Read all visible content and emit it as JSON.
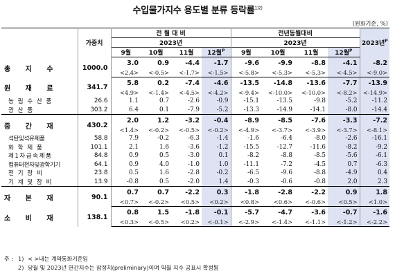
{
  "title": {
    "text": "수입물가지수 용도별 분류 등락률",
    "sup": "1)2)"
  },
  "unit": "(원화기준, %)",
  "header": {
    "weight": "가중치",
    "mom": "전 월 대 비",
    "yoy": "전년동월대비",
    "year": "2023년",
    "months": [
      "9월",
      "10월",
      "11월",
      "12월"
    ],
    "p_mark": "P",
    "annual": "2023년",
    "annual_p": "P"
  },
  "rows": [
    {
      "label": "총 지 수",
      "type": "major",
      "weight": "1000.0",
      "mom": [
        "3.0",
        "0.9",
        "-4.4",
        "-1.7"
      ],
      "yoy": [
        "-9.6",
        "-9.9",
        "-8.8",
        "-4.1"
      ],
      "annual": "-8.2",
      "mom_y": [
        "<2.4>",
        "<-0.5>",
        "<-1.7>",
        "<-1.5>"
      ],
      "yoy_y": [
        "<-5.8>",
        "<-5.3>",
        "<-5.3>",
        "<-4.5>"
      ],
      "annual_y": "<-9.0>"
    },
    {
      "label": "원 재 료",
      "type": "major",
      "weight": "341.7",
      "mom": [
        "5.8",
        "0.2",
        "-7.4",
        "-4.6"
      ],
      "yoy": [
        "-13.5",
        "-14.8",
        "-13.6",
        "-7.7"
      ],
      "annual": "-13.9",
      "mom_y": [
        "<4.9>",
        "<-1.4>",
        "<-4.5>",
        "<-4.2>"
      ],
      "yoy_y": [
        "<-9.4>",
        "<-10.0>",
        "<-10.0>",
        "<-8.2>"
      ],
      "annual_y": "<-14.9>"
    },
    {
      "label": "농 림 수 산 품",
      "type": "sub",
      "weight": "26.6",
      "mom": [
        "1.1",
        "0.7",
        "-2.6",
        "-0.9"
      ],
      "yoy": [
        "-15.1",
        "-13.5",
        "-9.8",
        "-5.2"
      ],
      "annual": "-11.2"
    },
    {
      "label": "광 산 품",
      "type": "sub",
      "weight": "303.2",
      "mom": [
        "6.4",
        "0.1",
        "-7.9",
        "-5.2"
      ],
      "yoy": [
        "-13.3",
        "-14.9",
        "-14.1",
        "-8.0"
      ],
      "annual": "-14.4"
    },
    {
      "label": "중 간 재",
      "type": "major",
      "weight": "430.2",
      "mom": [
        "2.0",
        "1.2",
        "-3.2",
        "-0.4"
      ],
      "yoy": [
        "-8.9",
        "-8.5",
        "-7.6",
        "-3.3"
      ],
      "annual": "-7.2",
      "mom_y": [
        "<1.4>",
        "<-0.2>",
        "<-0.5>",
        "<-0.2>"
      ],
      "yoy_y": [
        "<-4.9>",
        "<-3.7>",
        "<-3.9>",
        "<-3.7>"
      ],
      "annual_y": "<-8.1>"
    },
    {
      "label": "석탄및석유제품",
      "type": "sub",
      "tight": true,
      "weight": "58.8",
      "mom": [
        "7.9",
        "-0.2",
        "-6.3",
        "-1.4"
      ],
      "yoy": [
        "-1.6",
        "-6.4",
        "-8.0",
        "-2.6"
      ],
      "annual": "-16.1"
    },
    {
      "label": "화 학 제 품",
      "type": "sub",
      "weight": "101.1",
      "mom": [
        "2.1",
        "1.6",
        "-3.6",
        "-1.2"
      ],
      "yoy": [
        "-15.5",
        "-12.7",
        "-11.6",
        "-8.2"
      ],
      "annual": "-9.2"
    },
    {
      "label": "제1차금속제품",
      "type": "sub",
      "weight": "84.8",
      "mom": [
        "0.9",
        "0.5",
        "-3.0",
        "0.1"
      ],
      "yoy": [
        "-8.2",
        "-8.8",
        "-8.5",
        "-5.6"
      ],
      "annual": "-6.1"
    },
    {
      "label": "컴퓨터전자및광학기기",
      "type": "sub",
      "tight": true,
      "weight": "64.1",
      "mom": [
        "0.9",
        "4.0",
        "-1.0",
        "1.0"
      ],
      "yoy": [
        "-11.1",
        "-7.2",
        "-4.5",
        "0.7"
      ],
      "annual": "-6.3"
    },
    {
      "label": "전 기 장 비",
      "type": "sub",
      "weight": "23.8",
      "mom": [
        "0.5",
        "1.6",
        "-2.8",
        "-0.2"
      ],
      "yoy": [
        "-6.5",
        "-9.6",
        "-8.8",
        "-4.9"
      ],
      "annual": "0.4"
    },
    {
      "label": "기 계 및 장 비",
      "type": "sub",
      "weight": "13.9",
      "mom": [
        "-0.8",
        "0.5",
        "-2.0",
        "1.4"
      ],
      "yoy": [
        "-0.3",
        "-0.6",
        "-0.8",
        "2.0"
      ],
      "annual": "2.3"
    },
    {
      "label": "자 본 재",
      "type": "major",
      "weight": "90.1",
      "mom": [
        "0.7",
        "0.7",
        "-2.2",
        "0.3"
      ],
      "yoy": [
        "-1.8",
        "-2.8",
        "-2.2",
        "0.9"
      ],
      "annual": "1.8",
      "mom_y": [
        "<0.7>",
        "<-0.2>",
        "<0.5>",
        "<0.2>"
      ],
      "yoy_y": [
        "<0.8>",
        "<0.6>",
        "<-0.6>",
        "<0.5>"
      ],
      "annual_y": "<1.0>"
    },
    {
      "label": "소 비 재",
      "type": "major",
      "weight": "138.1",
      "mom": [
        "0.8",
        "1.5",
        "-1.8",
        "-0.1"
      ],
      "yoy": [
        "-5.7",
        "-4.7",
        "-3.6",
        "-0.7"
      ],
      "annual": "-1.6",
      "mom_y": [
        "<0.3>",
        "<-0.5>",
        "<0.2>",
        "<-0.1>"
      ],
      "yoy_y": [
        "<-2.9>",
        "<-1.4>",
        "<-1.1>",
        "<-1.2>"
      ],
      "annual_y": "<-2.2>"
    }
  ],
  "notes": {
    "label": "주 :",
    "items": [
      {
        "idx": "1)",
        "text": "< >내는 계약통화기준임"
      },
      {
        "idx": "2)",
        "text": "당월 및 2023년 연간지수는 잠정치(preliminary)이며 익월 지수 공표시 확정됨"
      }
    ]
  }
}
